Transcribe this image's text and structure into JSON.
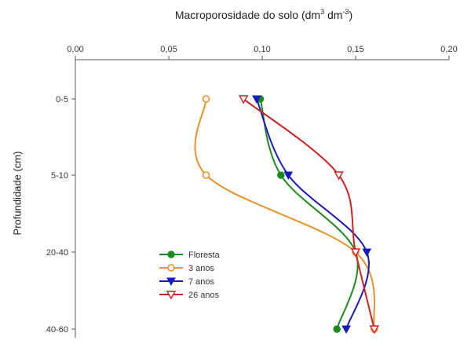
{
  "chart_data": {
    "type": "line",
    "title_main": "Macroporosidade do solo (dm",
    "title_exp1": "3",
    "title_mid": " dm",
    "title_exp2": "-3",
    "title_end": ")",
    "xlabel": "Macroporosidade do solo (dm³ dm⁻³)",
    "ylabel": "Profundidade (cm)",
    "xlim": [
      0.0,
      0.2
    ],
    "x_ticks": [
      "0,00",
      "0,05",
      "0,10",
      "0,15",
      "0,20"
    ],
    "x_tick_values": [
      0.0,
      0.05,
      0.1,
      0.15,
      0.2
    ],
    "categories": [
      "0-5",
      "5-10",
      "20-40",
      "40-60"
    ],
    "x_axis_position": "top",
    "legend_position": "bottom-left",
    "grid": false,
    "series": [
      {
        "name": "Floresta",
        "color": "#1e8a1e",
        "marker": "filled-circle",
        "values": [
          0.099,
          0.11,
          0.15,
          0.14
        ]
      },
      {
        "name": "3 anos",
        "color": "#e8922a",
        "marker": "open-circle",
        "values": [
          0.07,
          0.07,
          0.15,
          0.16
        ]
      },
      {
        "name": "7 anos",
        "color": "#1a1ab8",
        "marker": "filled-triangle-down",
        "values": [
          0.097,
          0.114,
          0.156,
          0.145
        ]
      },
      {
        "name": "26 anos",
        "color": "#cc2222",
        "marker": "open-triangle-down",
        "values": [
          0.09,
          0.141,
          0.15,
          0.16
        ]
      }
    ]
  }
}
